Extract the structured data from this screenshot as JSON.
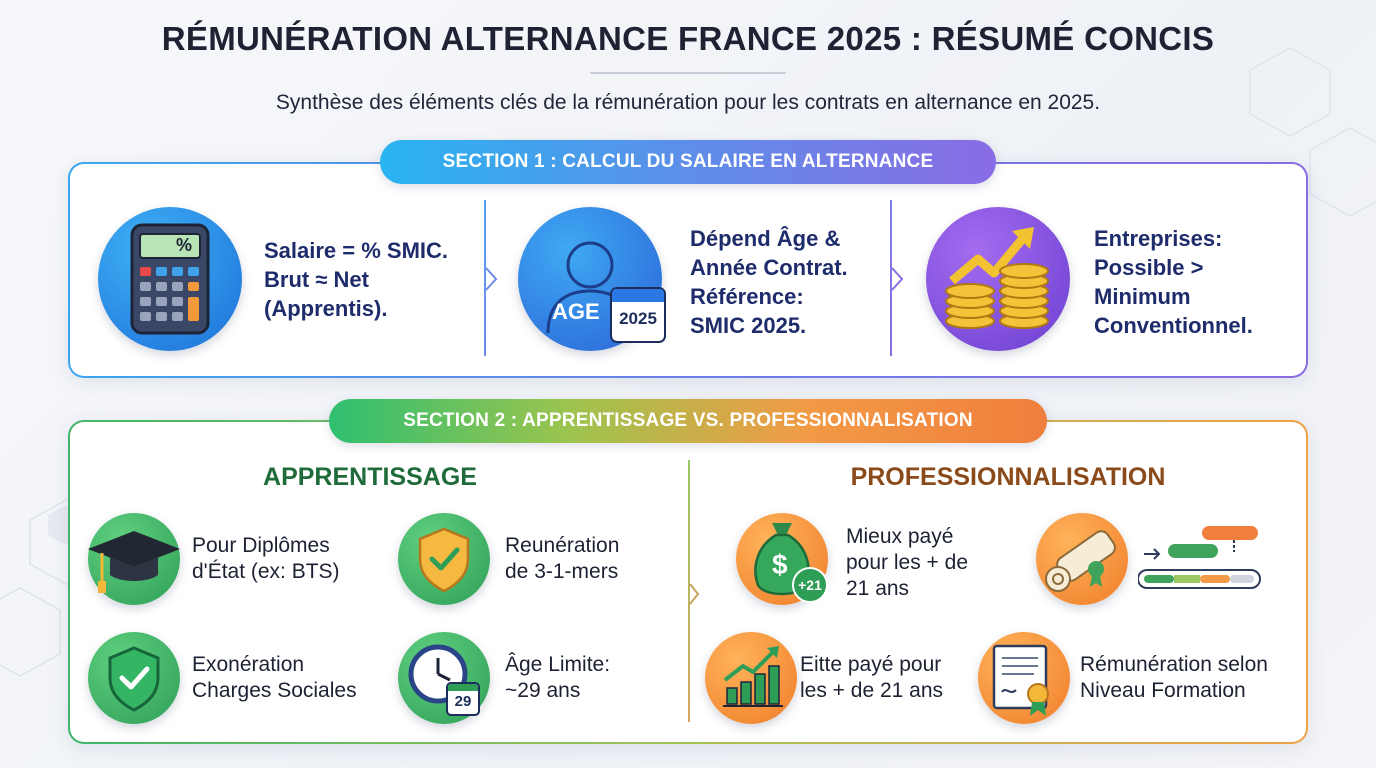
{
  "title": "RÉMUNÉRATION ALTERNANCE FRANCE 2025 : RÉSUMÉ CONCIS",
  "subtitle": "Synthèse des éléments clés de la rémunération pour les contrats en alternance en 2025.",
  "section1": {
    "label": "SECTION 1 : CALCUL DU SALAIRE EN ALTERNANCE",
    "items": [
      {
        "icon": "calculator-icon",
        "lines": [
          "Salaire = % SMIC.",
          "Brut ≈ Net",
          "(Apprentis)."
        ],
        "icon_text": "%"
      },
      {
        "icon": "age-calendar-icon",
        "lines": [
          "Dépend Âge &",
          "Année Contrat.",
          "Référence:",
          "SMIC 2025."
        ],
        "icon_text": "AGE",
        "calendar_text": "2025"
      },
      {
        "icon": "coins-growth-icon",
        "lines": [
          "Entreprises:",
          "Possible >",
          "Minimum",
          "Conventionnel."
        ]
      }
    ]
  },
  "section2": {
    "label": "SECTION 2 : APPRENTISSAGE VS. PROFESSIONNALISATION",
    "apprentissage": {
      "heading": "APPRENTISSAGE",
      "items": [
        {
          "icon": "graduation-cap-icon",
          "lines": [
            "Pour Diplômes",
            "d'État (ex: BTS)"
          ]
        },
        {
          "icon": "shield-check-icon",
          "lines": [
            "Reunération",
            "de 3-1-mers"
          ]
        },
        {
          "icon": "shield-check-icon",
          "lines": [
            "Exonération",
            "Charges Sociales"
          ]
        },
        {
          "icon": "clock-calendar-icon",
          "lines": [
            "Âge Limite:",
            "~29 ans"
          ],
          "calendar_text": "29"
        }
      ]
    },
    "professionnalisation": {
      "heading": "PROFESSIONNALISATION",
      "items": [
        {
          "icon": "money-bag-icon",
          "lines": [
            "Mieux payé",
            "pour les + de",
            "21 ans"
          ],
          "badge_text": "+21"
        },
        {
          "icon": "diploma-scroll-icon",
          "lines": []
        },
        {
          "icon": "bar-chart-growth-icon",
          "lines": [
            "Eitte payé pour",
            "les + de 21 ans"
          ]
        },
        {
          "icon": "certificate-icon",
          "lines": [
            "Rémunération selon",
            "Niveau Formation"
          ]
        }
      ]
    }
  },
  "colors": {
    "blue": "#2a78e4",
    "purple": "#7b55d9",
    "green": "#2e9e57",
    "orange": "#ef8a2e",
    "dark_green": "#1f6b3a",
    "brown": "#8a4a1a"
  }
}
